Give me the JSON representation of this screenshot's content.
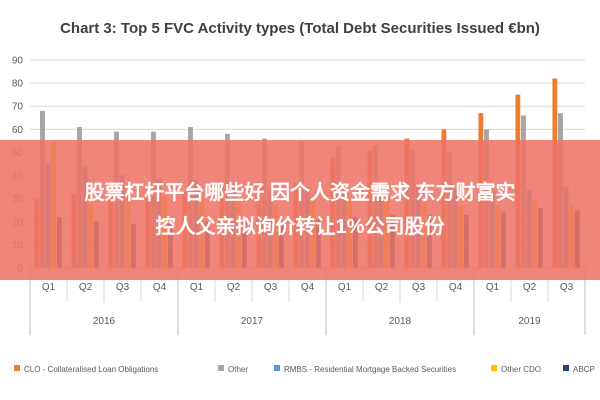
{
  "chart_data": {
    "type": "bar",
    "title": "Chart 3: Top 5 FVC Activity types (Total Debt Securities Issued €bn)",
    "xlabel": "",
    "ylabel": "",
    "ylim": [
      0,
      90
    ],
    "yticks": [
      0,
      10,
      20,
      30,
      40,
      50,
      60,
      70,
      80,
      90
    ],
    "grid": true,
    "legend_position": "bottom",
    "categories": [
      "Q1",
      "Q2",
      "Q3",
      "Q4",
      "Q1",
      "Q2",
      "Q3",
      "Q4",
      "Q1",
      "Q2",
      "Q3",
      "Q4",
      "Q1",
      "Q2",
      "Q3"
    ],
    "groups": [
      {
        "label": "2016",
        "count": 4
      },
      {
        "label": "2017",
        "count": 4
      },
      {
        "label": "2018",
        "count": 4
      },
      {
        "label": "2019",
        "count": 3
      }
    ],
    "series": [
      {
        "name": "CLO - Collateralised Loan Obligations",
        "color": "#ed7d31",
        "values": [
          30,
          32,
          33,
          30,
          33,
          35,
          36,
          37,
          48,
          51,
          56,
          60,
          67,
          75,
          82
        ]
      },
      {
        "name": "Other",
        "color": "#a5a5a5",
        "values": [
          68,
          61,
          59,
          59,
          61,
          58,
          56,
          55,
          53,
          53,
          51,
          50,
          60,
          66,
          67
        ]
      },
      {
        "name": "RMBS - Residential Mortgage Backed Securities",
        "color": "#5b9bd5",
        "values": [
          45,
          44,
          40,
          39,
          38,
          36,
          35,
          35,
          36,
          35,
          35,
          34,
          34,
          34,
          35
        ]
      },
      {
        "name": "Other CDO",
        "color": "#ffc000",
        "values": [
          55,
          35,
          32,
          31,
          30,
          29,
          27,
          29,
          30,
          31,
          28,
          27,
          27,
          29,
          28
        ]
      },
      {
        "name": "ABCP",
        "color": "#264478",
        "values": [
          22,
          20,
          19,
          19,
          20,
          20,
          20,
          21,
          22,
          23,
          23,
          23,
          24,
          26,
          25
        ]
      }
    ]
  },
  "overlay": {
    "line1": "股票杠杆平台哪些好 因个人资金需求 东方财富实",
    "line2": "控人父亲拟询价转让1%公司股份"
  }
}
